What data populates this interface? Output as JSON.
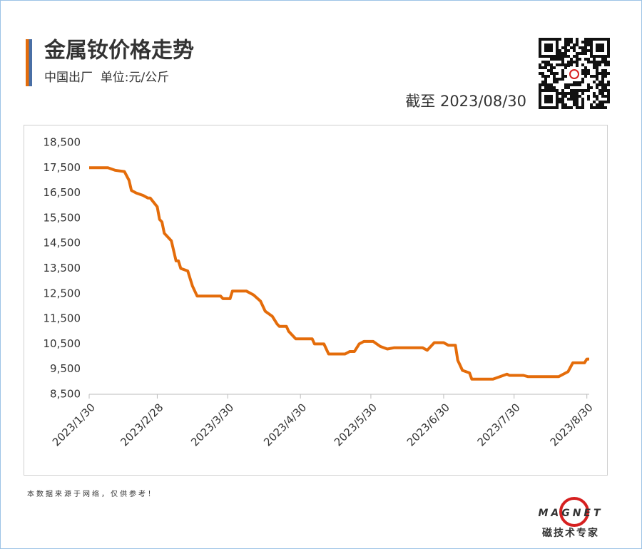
{
  "chart_data": {
    "type": "line",
    "title": "金属钕价格走势",
    "subtitle": "中国出厂  单位:元/公斤",
    "date_note": "截至 2023/08/30",
    "source": "本数据来源于网络，仅供参考！",
    "logo_text": "MAGNET",
    "logo_subtext": "磁技术专家",
    "color": "#e46c0a",
    "x": [
      "2023/1/30",
      "2023/2/7",
      "2023/2/10",
      "2023/2/14",
      "2023/2/16",
      "2023/2/17",
      "2023/2/19",
      "2023/2/22",
      "2023/2/24",
      "2023/2/25",
      "2023/2/28",
      "2023/3/1",
      "2023/3/2",
      "2023/3/3",
      "2023/3/6",
      "2023/3/8",
      "2023/3/9",
      "2023/3/10",
      "2023/3/13",
      "2023/3/15",
      "2023/3/17",
      "2023/3/27",
      "2023/3/28",
      "2023/3/31",
      "2023/4/1",
      "2023/4/7",
      "2023/4/10",
      "2023/4/13",
      "2023/4/15",
      "2023/4/18",
      "2023/4/20",
      "2023/4/21",
      "2023/4/24",
      "2023/4/25",
      "2023/4/28",
      "2023/5/5",
      "2023/5/6",
      "2023/5/10",
      "2023/5/12",
      "2023/5/19",
      "2023/5/21",
      "2023/5/23",
      "2023/5/25",
      "2023/5/27",
      "2023/5/31",
      "2023/6/3",
      "2023/6/6",
      "2023/6/9",
      "2023/6/21",
      "2023/6/23",
      "2023/6/26",
      "2023/6/30",
      "2023/7/2",
      "2023/7/5",
      "2023/7/6",
      "2023/7/8",
      "2023/7/11",
      "2023/7/12",
      "2023/7/21",
      "2023/7/27",
      "2023/7/28",
      "2023/8/3",
      "2023/8/5",
      "2023/8/18",
      "2023/8/22",
      "2023/8/24",
      "2023/8/29",
      "2023/8/30",
      "2023/8/31"
    ],
    "values": [
      17500,
      17500,
      17400,
      17350,
      17000,
      16600,
      16500,
      16400,
      16300,
      16300,
      15950,
      15450,
      15350,
      14900,
      14600,
      13800,
      13800,
      13500,
      13400,
      12800,
      12400,
      12400,
      12300,
      12300,
      12600,
      12600,
      12450,
      12200,
      11800,
      11600,
      11300,
      11200,
      11200,
      11000,
      10700,
      10700,
      10500,
      10500,
      10100,
      10100,
      10200,
      10200,
      10500,
      10600,
      10600,
      10400,
      10300,
      10350,
      10350,
      10250,
      10550,
      10550,
      10450,
      10450,
      9850,
      9450,
      9350,
      9100,
      9100,
      9300,
      9250,
      9250,
      9200,
      9200,
      9400,
      9750,
      9750,
      9900,
      9900
    ],
    "xlim": [
      "2023/1/30",
      "2023/8/31"
    ],
    "xticks": [
      "2023/1/30",
      "2023/2/28",
      "2023/3/30",
      "2023/4/30",
      "2023/5/30",
      "2023/6/30",
      "2023/7/30",
      "2023/8/30"
    ],
    "ylim": [
      8500,
      18500
    ],
    "yticks": [
      {
        "value": 8500,
        "label": "8,500"
      },
      {
        "value": 9500,
        "label": "9,500"
      },
      {
        "value": 10500,
        "label": "10,500"
      },
      {
        "value": 11500,
        "label": "11,500"
      },
      {
        "value": 12500,
        "label": "12,500"
      },
      {
        "value": 13500,
        "label": "13,500"
      },
      {
        "value": 14500,
        "label": "14,500"
      },
      {
        "value": 15500,
        "label": "15,500"
      },
      {
        "value": 16500,
        "label": "16,500"
      },
      {
        "value": 17500,
        "label": "17,500"
      },
      {
        "value": 18500,
        "label": "18,500"
      }
    ],
    "grid": false
  }
}
